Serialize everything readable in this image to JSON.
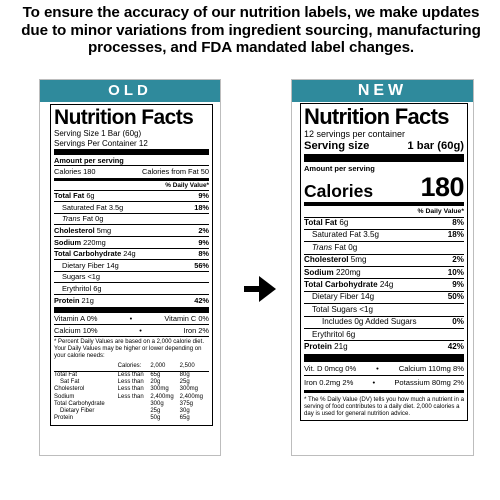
{
  "headline": "To ensure the accuracy of our nutrition labels, we make updates due to minor variations from ingredient sourcing, manufacturing processes, and FDA mandated label changes.",
  "arrow_icon": "right-arrow-icon",
  "accent_color": "#2f8a9c",
  "old": {
    "tag": "OLD",
    "title": "Nutrition Facts",
    "serving_size": "Serving Size 1 Bar (60g)",
    "servings_per_container": "Servings Per Container 12",
    "amount_per_serving": "Amount per serving",
    "calories": "Calories 180",
    "calories_from_fat": "Calories from Fat 50",
    "dv_header": "% Daily Value*",
    "rows": [
      {
        "label": "Total Fat",
        "amount": "6g",
        "dv": "9%"
      },
      {
        "label": "Saturated Fat",
        "amount": "3.5g",
        "dv": "18%"
      },
      {
        "label": "Trans",
        "amount": "Fat 0g",
        "dv": ""
      },
      {
        "label": "Cholesterol",
        "amount": "5mg",
        "dv": "2%"
      },
      {
        "label": "Sodium",
        "amount": "220mg",
        "dv": "9%"
      },
      {
        "label": "Total Carbohydrate",
        "amount": "24g",
        "dv": "8%"
      },
      {
        "label": "Dietary Fiber",
        "amount": "14g",
        "dv": "56%"
      },
      {
        "label": "Sugars",
        "amount": "<1g",
        "dv": ""
      },
      {
        "label": "Erythritol",
        "amount": "6g",
        "dv": ""
      },
      {
        "label": "Protein",
        "amount": "21g",
        "dv": "42%"
      }
    ],
    "vit_a": "Vitamin A 0%",
    "vit_c": "Vitamin C 0%",
    "calcium": "Calcium 10%",
    "iron": "Iron 2%",
    "bullet": "•",
    "footnote": "* Percent Daily Values are based on a 2,000 calorie diet. Your Daily Values may be higher or lower depending on your calorie needs:",
    "table": {
      "header": [
        "",
        "Calories:",
        "2,000",
        "2,500"
      ],
      "rows": [
        [
          "Total Fat",
          "Less than",
          "65g",
          "80g"
        ],
        [
          "Sat Fat",
          "Less than",
          "20g",
          "25g"
        ],
        [
          "Cholesterol",
          "Less than",
          "300mg",
          "300mg"
        ],
        [
          "Sodium",
          "Less than",
          "2,400mg",
          "2,400mg"
        ],
        [
          "Total Carbohydrate",
          "",
          "300g",
          "375g"
        ],
        [
          "Dietary Fiber",
          "",
          "25g",
          "30g"
        ],
        [
          "Protein",
          "",
          "50g",
          "65g"
        ]
      ]
    }
  },
  "new": {
    "tag": "NEW",
    "title": "Nutrition Facts",
    "servings_per_container": "12 servings per container",
    "serving_size_label": "Serving size",
    "serving_size_value": "1 bar (60g)",
    "amount_per_serving": "Amount per serving",
    "calories_label": "Calories",
    "calories_value": "180",
    "dv_header": "% Daily Value*",
    "rows": [
      {
        "label": "Total Fat",
        "amount": "6g",
        "dv": "8%"
      },
      {
        "label": "Saturated Fat",
        "amount": "3.5g",
        "dv": "18%"
      },
      {
        "label": "Trans",
        "amount": "Fat 0g",
        "dv": ""
      },
      {
        "label": "Cholesterol",
        "amount": "5mg",
        "dv": "2%"
      },
      {
        "label": "Sodium",
        "amount": "220mg",
        "dv": "10%"
      },
      {
        "label": "Total Carbohydrate",
        "amount": "24g",
        "dv": "9%"
      },
      {
        "label": "Dietary Fiber",
        "amount": "14g",
        "dv": "50%"
      },
      {
        "label": "Total Sugars",
        "amount": "<1g",
        "dv": ""
      },
      {
        "label": "Includes 0g Added Sugars",
        "amount": "",
        "dv": "0%"
      },
      {
        "label": "Erythritol",
        "amount": "6g",
        "dv": ""
      },
      {
        "label": "Protein",
        "amount": "21g",
        "dv": "42%"
      }
    ],
    "vit_d": "Vit. D 0mcg 0%",
    "calcium": "Calcium 110mg 8%",
    "iron": "Iron 0.2mg 2%",
    "potassium": "Potassium 80mg 2%",
    "bullet": "•",
    "footnote": "* The % Daily Value (DV) tells you how much a nutrient in a serving of food contributes to a daily diet. 2,000 calories a day is used for general nutrition advice."
  }
}
